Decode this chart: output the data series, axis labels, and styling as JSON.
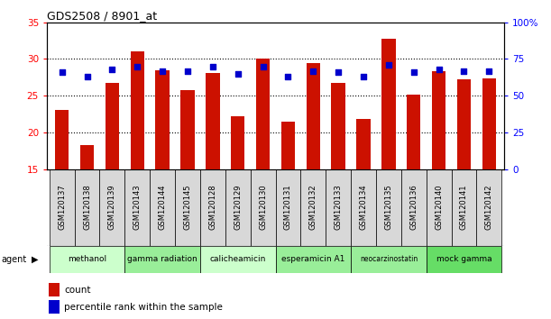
{
  "title": "GDS2508 / 8901_at",
  "samples": [
    "GSM120137",
    "GSM120138",
    "GSM120139",
    "GSM120143",
    "GSM120144",
    "GSM120145",
    "GSM120128",
    "GSM120129",
    "GSM120130",
    "GSM120131",
    "GSM120132",
    "GSM120133",
    "GSM120134",
    "GSM120135",
    "GSM120136",
    "GSM120140",
    "GSM120141",
    "GSM120142"
  ],
  "counts": [
    23.0,
    18.3,
    26.8,
    31.1,
    28.5,
    25.8,
    28.1,
    22.2,
    30.0,
    21.5,
    29.4,
    26.7,
    21.8,
    32.8,
    25.2,
    28.4,
    27.2,
    27.3
  ],
  "percentiles": [
    66,
    63,
    68,
    70,
    67,
    67,
    70,
    65,
    70,
    63,
    67,
    66,
    63,
    71,
    66,
    68,
    67,
    67
  ],
  "bar_color": "#cc1100",
  "dot_color": "#0000cc",
  "ylim_left": [
    15,
    35
  ],
  "ylim_right": [
    0,
    100
  ],
  "yticks_left": [
    15,
    20,
    25,
    30,
    35
  ],
  "yticks_right": [
    0,
    25,
    50,
    75,
    100
  ],
  "ytick_labels_right": [
    "0",
    "25",
    "50",
    "75",
    "100%"
  ],
  "groups": [
    {
      "label": "methanol",
      "start": 0,
      "end": 3,
      "color": "#ccffcc"
    },
    {
      "label": "gamma radiation",
      "start": 3,
      "end": 6,
      "color": "#99ee99"
    },
    {
      "label": "calicheamicin",
      "start": 6,
      "end": 9,
      "color": "#ccffcc"
    },
    {
      "label": "esperamicin A1",
      "start": 9,
      "end": 12,
      "color": "#99ee99"
    },
    {
      "label": "neocarzinostatin",
      "start": 12,
      "end": 15,
      "color": "#99ee99"
    },
    {
      "label": "mock gamma",
      "start": 15,
      "end": 18,
      "color": "#66dd66"
    }
  ],
  "legend_count_label": "count",
  "legend_pct_label": "percentile rank within the sample",
  "agent_label": "agent",
  "bar_width": 0.55
}
